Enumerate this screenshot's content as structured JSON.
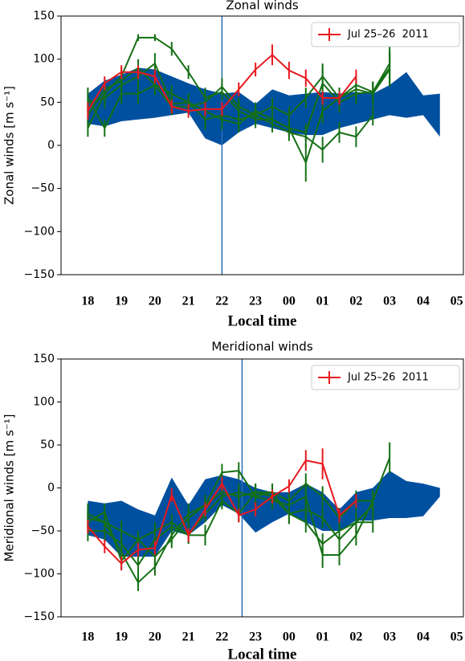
{
  "chart_data": [
    {
      "type": "line",
      "title": "Zonal winds",
      "xlabel": "Local time",
      "ylabel": "Zonal winds [m s⁻¹]",
      "x": [
        18,
        18.5,
        19,
        19.5,
        20,
        20.5,
        21,
        21.5,
        22,
        22.5,
        23,
        23.5,
        24,
        24.5,
        25,
        25.5,
        26,
        26.5,
        27,
        27.5,
        28,
        28.5
      ],
      "xlim": [
        17.2,
        29.2
      ],
      "xticks": [
        18,
        19,
        20,
        21,
        22,
        23,
        {
          "value": 24,
          "label": "00"
        },
        {
          "value": 25,
          "label": "01"
        },
        {
          "value": 26,
          "label": "02"
        },
        {
          "value": 27,
          "label": "03"
        },
        {
          "value": 28,
          "label": "04"
        },
        {
          "value": 29,
          "label": "05"
        }
      ],
      "ylim": [
        -150,
        150
      ],
      "yticks": [
        {
          "value": -150,
          "label": "−150"
        },
        {
          "value": -100,
          "label": "−100"
        },
        {
          "value": -50,
          "label": "−50"
        },
        0,
        50,
        100,
        150
      ],
      "vline": {
        "x": 22.0,
        "color": "#2a6db5"
      },
      "band": {
        "color": "#0050a0",
        "upper": [
          60,
          75,
          82,
          90,
          88,
          80,
          72,
          65,
          60,
          62,
          48,
          65,
          58,
          60,
          62,
          60,
          62,
          60,
          70,
          85,
          58,
          60
        ],
        "lower": [
          25,
          22,
          28,
          30,
          32,
          35,
          38,
          8,
          0,
          15,
          25,
          20,
          15,
          12,
          12,
          20,
          25,
          30,
          35,
          32,
          35,
          10
        ]
      },
      "legend": "upper right",
      "series": [
        {
          "color": "#157015",
          "values": [
            20,
            60,
            80,
            125,
            125,
            112,
            85,
            55,
            62,
            40,
            30,
            30,
            20,
            15,
            72,
            50,
            60,
            62,
            90,
            null,
            null,
            null
          ],
          "errors": [
            10,
            10,
            10,
            4,
            4,
            8,
            8,
            12,
            10,
            10,
            10,
            10,
            10,
            10,
            20,
            12,
            12,
            12,
            20,
            null,
            null,
            null
          ]
        },
        {
          "color": "#157015",
          "values": [
            35,
            65,
            75,
            90,
            70,
            45,
            45,
            50,
            68,
            45,
            35,
            45,
            35,
            55,
            80,
            55,
            70,
            62,
            95,
            null,
            null,
            null
          ],
          "errors": [
            12,
            12,
            12,
            10,
            10,
            10,
            10,
            12,
            10,
            10,
            10,
            10,
            10,
            12,
            15,
            12,
            12,
            12,
            20,
            null,
            null,
            null
          ]
        },
        {
          "color": "#157015",
          "values": [
            55,
            20,
            60,
            60,
            70,
            60,
            50,
            40,
            30,
            25,
            40,
            30,
            20,
            -20,
            40,
            55,
            65,
            60,
            88,
            null,
            null,
            null
          ],
          "errors": [
            12,
            10,
            12,
            12,
            12,
            10,
            10,
            12,
            12,
            10,
            10,
            10,
            10,
            22,
            15,
            12,
            12,
            12,
            20,
            null,
            null,
            null
          ]
        },
        {
          "color": "#157015",
          "values": [
            50,
            55,
            70,
            80,
            95,
            48,
            50,
            30,
            35,
            30,
            35,
            25,
            15,
            10,
            -5,
            15,
            10,
            35,
            null,
            null,
            null,
            null
          ],
          "errors": [
            12,
            12,
            12,
            10,
            12,
            10,
            10,
            12,
            10,
            10,
            10,
            10,
            10,
            12,
            15,
            12,
            12,
            12,
            null,
            null,
            null,
            null
          ]
        },
        {
          "name": "Jul 25–26  2011",
          "color": "#e8191f",
          "values": [
            40,
            72,
            85,
            85,
            80,
            45,
            40,
            42,
            42,
            65,
            88,
            105,
            87,
            78,
            55,
            55,
            80,
            null,
            null,
            null,
            null,
            null
          ],
          "errors": [
            10,
            8,
            8,
            8,
            8,
            8,
            8,
            8,
            8,
            8,
            8,
            12,
            10,
            10,
            8,
            8,
            8,
            null,
            null,
            null,
            null,
            null
          ]
        }
      ]
    },
    {
      "type": "line",
      "title": "Meridional winds",
      "xlabel": "Local time",
      "ylabel": "Meridional winds [m s⁻¹]",
      "x": [
        18,
        18.5,
        19,
        19.5,
        20,
        20.5,
        21,
        21.5,
        22,
        22.5,
        23,
        23.5,
        24,
        24.5,
        25,
        25.5,
        26,
        26.5,
        27,
        27.5,
        28,
        28.5
      ],
      "xlim": [
        17.2,
        29.2
      ],
      "xticks": [
        18,
        19,
        20,
        21,
        22,
        23,
        {
          "value": 24,
          "label": "00"
        },
        {
          "value": 25,
          "label": "01"
        },
        {
          "value": 26,
          "label": "02"
        },
        {
          "value": 27,
          "label": "03"
        },
        {
          "value": 28,
          "label": "04"
        },
        {
          "value": 29,
          "label": "05"
        }
      ],
      "ylim": [
        -150,
        150
      ],
      "yticks": [
        {
          "value": -150,
          "label": "−150"
        },
        {
          "value": -100,
          "label": "−100"
        },
        {
          "value": -50,
          "label": "−50"
        },
        0,
        50,
        100,
        150
      ],
      "vline": {
        "x": 22.6,
        "color": "#2a6db5"
      },
      "band": {
        "color": "#0050a0",
        "upper": [
          -15,
          -18,
          -15,
          -25,
          -32,
          12,
          -20,
          10,
          15,
          10,
          0,
          -5,
          -5,
          5,
          -5,
          -25,
          -5,
          0,
          20,
          8,
          5,
          0
        ],
        "lower": [
          -55,
          -60,
          -80,
          -80,
          -80,
          -50,
          -55,
          -40,
          -20,
          -30,
          -52,
          -40,
          -30,
          -40,
          -50,
          -50,
          -38,
          -38,
          -35,
          -35,
          -33,
          -10
        ]
      },
      "legend": "upper right",
      "series": [
        {
          "color": "#157015",
          "values": [
            -30,
            -40,
            -75,
            -110,
            -92,
            -55,
            -30,
            -20,
            18,
            20,
            -10,
            -15,
            -20,
            -10,
            -78,
            -78,
            -55,
            -15,
            35,
            null,
            null,
            null
          ],
          "errors": [
            12,
            12,
            12,
            10,
            10,
            10,
            12,
            12,
            10,
            10,
            10,
            10,
            12,
            12,
            15,
            12,
            12,
            12,
            18,
            null,
            null,
            null
          ]
        },
        {
          "color": "#157015",
          "values": [
            -40,
            -28,
            -85,
            -60,
            -50,
            -40,
            -55,
            -30,
            -10,
            -5,
            -10,
            -5,
            -15,
            5,
            -10,
            -35,
            -15,
            -15,
            null,
            null,
            null,
            null
          ],
          "errors": [
            12,
            10,
            10,
            10,
            10,
            10,
            10,
            10,
            10,
            10,
            10,
            10,
            10,
            12,
            12,
            12,
            12,
            12,
            null,
            null,
            null,
            null
          ]
        },
        {
          "color": "#157015",
          "values": [
            -50,
            -50,
            -65,
            -90,
            -60,
            -45,
            -55,
            -55,
            -15,
            -30,
            -5,
            -5,
            -30,
            -25,
            -35,
            -60,
            -40,
            -40,
            null,
            null,
            null,
            null
          ],
          "errors": [
            12,
            12,
            12,
            10,
            10,
            10,
            10,
            12,
            10,
            10,
            10,
            10,
            12,
            12,
            12,
            12,
            12,
            12,
            null,
            null,
            null,
            null
          ]
        },
        {
          "color": "#157015",
          "values": [
            -35,
            -40,
            -50,
            -60,
            -80,
            -60,
            -35,
            -20,
            -5,
            -10,
            -5,
            -10,
            -30,
            -40,
            -65,
            -50,
            -40,
            -20,
            null,
            null,
            null,
            null
          ],
          "errors": [
            12,
            12,
            12,
            10,
            10,
            10,
            10,
            12,
            10,
            10,
            10,
            10,
            12,
            12,
            12,
            12,
            12,
            12,
            null,
            null,
            null,
            null
          ]
        },
        {
          "name": "Jul 25–26  2011",
          "color": "#e8191f",
          "values": [
            -45,
            -68,
            -88,
            -72,
            -70,
            -8,
            -55,
            -25,
            5,
            -32,
            -25,
            -10,
            2,
            32,
            28,
            -32,
            -15,
            null,
            null,
            null,
            null,
            null
          ],
          "errors": [
            8,
            8,
            8,
            8,
            8,
            8,
            8,
            8,
            8,
            8,
            8,
            8,
            8,
            12,
            18,
            8,
            8,
            null,
            null,
            null,
            null,
            null
          ]
        }
      ]
    }
  ]
}
